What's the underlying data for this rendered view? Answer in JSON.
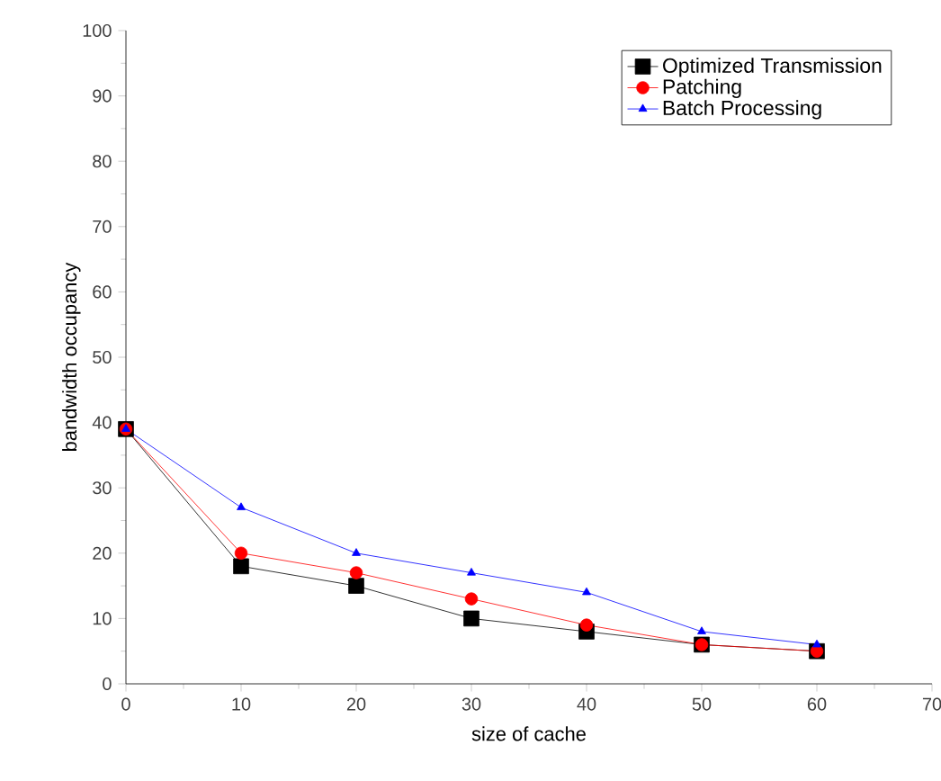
{
  "chart_data": {
    "type": "line",
    "xlabel": "size of cache",
    "ylabel": "bandwidth occupancy",
    "x": [
      0,
      10,
      20,
      30,
      40,
      50,
      60
    ],
    "xlim": [
      0,
      70
    ],
    "xticks": [
      0,
      10,
      20,
      30,
      40,
      50,
      60,
      70
    ],
    "ylim": [
      0,
      100
    ],
    "yticks": [
      0,
      10,
      20,
      30,
      40,
      50,
      60,
      70,
      80,
      90,
      100
    ],
    "legend": "top right",
    "grid": false,
    "line_style": "solid",
    "series": [
      {
        "name": "Optimized Transmission",
        "color": "#000000",
        "marker": "square",
        "values": [
          39,
          18,
          15,
          10,
          8,
          6,
          5
        ]
      },
      {
        "name": "Patching",
        "color": "#ff0000",
        "marker": "circle",
        "values": [
          39,
          20,
          17,
          13,
          9,
          6,
          5
        ]
      },
      {
        "name": "Batch Processing",
        "color": "#0000ff",
        "marker": "triangle",
        "values": [
          39,
          27,
          20,
          17,
          14,
          8,
          6
        ]
      }
    ]
  }
}
